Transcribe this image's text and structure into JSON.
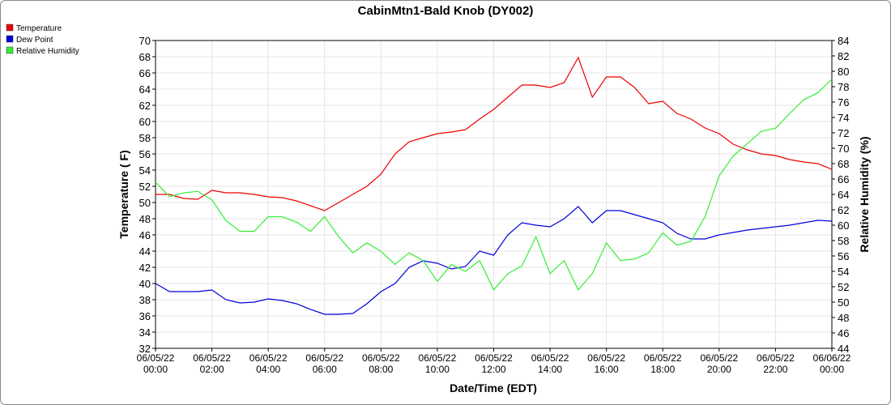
{
  "chart_data": {
    "type": "line",
    "title": "CabinMtn1-Bald Knob (DY002)",
    "x_label": "Date/Time (EDT)",
    "y_label": "Temperature ( F)",
    "y2_label": "Relative Humidity (%)",
    "x": [
      "06/05/22 00:00",
      "06/05/22 00:30",
      "06/05/22 01:00",
      "06/05/22 01:30",
      "06/05/22 02:00",
      "06/05/22 02:30",
      "06/05/22 03:00",
      "06/05/22 03:30",
      "06/05/22 04:00",
      "06/05/22 04:30",
      "06/05/22 05:00",
      "06/05/22 05:30",
      "06/05/22 06:00",
      "06/05/22 06:30",
      "06/05/22 07:00",
      "06/05/22 07:30",
      "06/05/22 08:00",
      "06/05/22 08:30",
      "06/05/22 09:00",
      "06/05/22 09:30",
      "06/05/22 10:00",
      "06/05/22 10:30",
      "06/05/22 11:00",
      "06/05/22 11:30",
      "06/05/22 12:00",
      "06/05/22 12:30",
      "06/05/22 13:00",
      "06/05/22 13:30",
      "06/05/22 14:00",
      "06/05/22 14:30",
      "06/05/22 15:00",
      "06/05/22 15:30",
      "06/05/22 16:00",
      "06/05/22 16:30",
      "06/05/22 17:00",
      "06/05/22 17:30",
      "06/05/22 18:00",
      "06/05/22 18:30",
      "06/05/22 19:00",
      "06/05/22 19:30",
      "06/05/22 20:00",
      "06/05/22 20:30",
      "06/05/22 21:00",
      "06/05/22 21:30",
      "06/05/22 22:00",
      "06/05/22 22:30",
      "06/05/22 23:00",
      "06/05/22 23:30",
      "06/06/22 00:00"
    ],
    "series": [
      {
        "name": "Temperature",
        "color": "#ee0000",
        "values": [
          51,
          51,
          50.5,
          50.4,
          51.5,
          51.2,
          51.2,
          51,
          50.7,
          50.6,
          50.2,
          49.6,
          49,
          50,
          51,
          52,
          53.5,
          56,
          57.5,
          58,
          58.5,
          58.7,
          59,
          60.3,
          61.5,
          63,
          64.5,
          64.5,
          64.2,
          64.8,
          67.9,
          63,
          65.5,
          65.5,
          64.2,
          62.2,
          62.5,
          61,
          60.3,
          59.2,
          58.5,
          57.2,
          56.5,
          56,
          55.8,
          55.3,
          55,
          54.8,
          54.1
        ]
      },
      {
        "name": "Dew Point",
        "color": "#0000dd",
        "values": [
          40,
          39,
          39,
          39,
          39.2,
          38,
          37.6,
          37.7,
          38.1,
          37.9,
          37.5,
          36.8,
          36.2,
          36.2,
          36.3,
          37.5,
          39,
          40,
          42,
          42.8,
          42.5,
          41.8,
          42.1,
          44,
          43.5,
          46,
          47.5,
          47.2,
          47,
          48,
          49.5,
          47.5,
          49,
          49,
          48.5,
          48,
          47.5,
          46.2,
          45.5,
          45.5,
          46,
          46.3,
          46.6,
          46.8,
          47,
          47.2,
          47.5,
          47.8,
          47.7
        ]
      },
      {
        "name": "Relative Humidity",
        "color": "#33ee33",
        "axis": "y2",
        "values": [
          65.6,
          63.7,
          64.2,
          64.4,
          63.3,
          60.6,
          59.2,
          59.2,
          61.1,
          61.1,
          60.4,
          59.2,
          61.1,
          58.5,
          56.4,
          57.7,
          56.6,
          54.9,
          56.4,
          55.4,
          52.7,
          54.9,
          54,
          55.4,
          51.6,
          53.7,
          54.7,
          58.5,
          53.7,
          55.4,
          51.6,
          53.7,
          57.7,
          55.4,
          55.6,
          56.4,
          59,
          57.4,
          57.9,
          61.1,
          66.4,
          69,
          70.6,
          72.2,
          72.6,
          74.5,
          76.3,
          77.2,
          79
        ]
      }
    ],
    "xlim": [
      "06/05/22 00:00",
      "06/06/22 00:00"
    ],
    "xticks": [
      "06/05/22 00:00",
      "06/05/22 02:00",
      "06/05/22 04:00",
      "06/05/22 06:00",
      "06/05/22 08:00",
      "06/05/22 10:00",
      "06/05/22 12:00",
      "06/05/22 14:00",
      "06/05/22 16:00",
      "06/05/22 18:00",
      "06/05/22 20:00",
      "06/05/22 22:00",
      "06/06/22 00:00"
    ],
    "ylim": [
      32,
      70
    ],
    "yticks": [
      32,
      34,
      36,
      38,
      40,
      42,
      44,
      46,
      48,
      50,
      52,
      54,
      56,
      58,
      60,
      62,
      64,
      66,
      68,
      70
    ],
    "y2lim": [
      44,
      84
    ],
    "y2ticks": [
      44,
      46,
      48,
      50,
      52,
      54,
      56,
      58,
      60,
      62,
      64,
      66,
      68,
      70,
      72,
      74,
      76,
      78,
      80,
      82,
      84
    ],
    "grid": true,
    "legend": "top-left"
  }
}
